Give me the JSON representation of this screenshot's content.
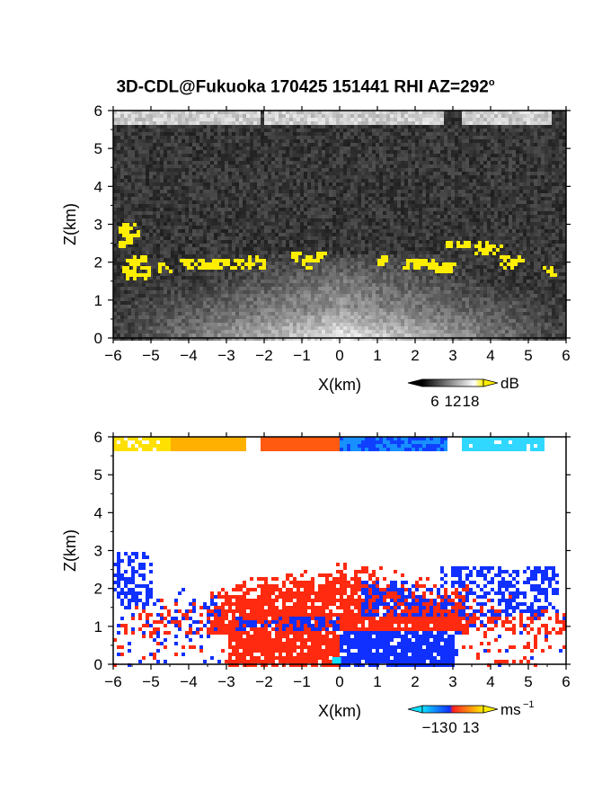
{
  "title": "3D-CDL@Fukuoka 170425 151441 RHI AZ=292",
  "title_degree": "o",
  "colors": {
    "aerosol_yellow": "#ffee00",
    "velocity_red": "#ff2a10",
    "velocity_blue": "#1030ff",
    "velocity_cyan": "#10e0ff"
  },
  "chart_data": [
    {
      "type": "heatmap",
      "name": "panel-intensity",
      "xlabel": "X(km)",
      "ylabel": "Z(km)",
      "xlim": [
        -6,
        6
      ],
      "ylim": [
        0,
        6
      ],
      "xticks": [
        "-6",
        "-5",
        "-4",
        "-3",
        "-2",
        "-1",
        "0",
        "1",
        "2",
        "3",
        "4",
        "5",
        "6"
      ],
      "yticks": [
        "0",
        "1",
        "2",
        "3",
        "4",
        "5",
        "6"
      ],
      "colorbar": {
        "unit": "dB",
        "ticks": [
          "6",
          "12",
          "18"
        ],
        "colormap": "gray-to-yellow"
      },
      "features": [
        {
          "label": "aerosol layer (>=18 dB)",
          "x_range": [
            -5.8,
            5.8
          ],
          "z_range": [
            1.5,
            3.0
          ]
        },
        {
          "label": "cloud band top",
          "x_range": [
            -6,
            6
          ],
          "z_range": [
            5.7,
            6.0
          ]
        },
        {
          "label": "near-ground echo",
          "x_range": [
            -6,
            6
          ],
          "z_range": [
            0,
            1.6
          ]
        }
      ]
    },
    {
      "type": "heatmap",
      "name": "panel-velocity",
      "xlabel": "X(km)",
      "ylabel": "Z(km)",
      "xlim": [
        -6,
        6
      ],
      "ylim": [
        0,
        6
      ],
      "xticks": [
        "-6",
        "-5",
        "-4",
        "-3",
        "-2",
        "-1",
        "0",
        "1",
        "2",
        "3",
        "4",
        "5",
        "6"
      ],
      "yticks": [
        "0",
        "1",
        "2",
        "3",
        "4",
        "5",
        "6"
      ],
      "colorbar": {
        "unit": "ms",
        "unit_exponent": "-1",
        "ticks": [
          "-13",
          "0",
          "13"
        ],
        "vmin": -13,
        "vmax": 13,
        "colormap": "cyan-blue-red-yellow"
      },
      "features": [
        {
          "label": "receding flow (positive)",
          "x_range": [
            -3,
            0
          ],
          "z_range": [
            0,
            2.8
          ]
        },
        {
          "label": "approaching flow (negative)",
          "x_range": [
            0,
            3
          ],
          "z_range": [
            0,
            1
          ]
        },
        {
          "label": "upper layer",
          "x_range": [
            -6,
            5.5
          ],
          "z_range": [
            5.7,
            6.0
          ]
        }
      ]
    }
  ]
}
